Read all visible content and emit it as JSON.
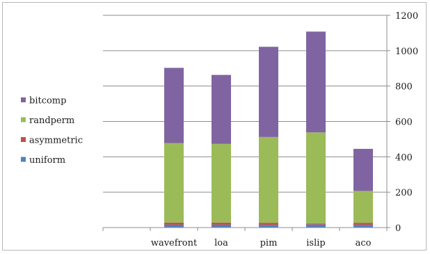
{
  "chart_data": {
    "type": "bar",
    "stacked": true,
    "title": "",
    "xlabel": "",
    "ylabel": "",
    "ylim": [
      0,
      1200
    ],
    "yticks": [
      0,
      200,
      400,
      600,
      800,
      1000,
      1200
    ],
    "y_axis_side": "right",
    "grid": true,
    "legend": "left",
    "categories": [
      "",
      "wavefront",
      "loa",
      "pim",
      "islip",
      "aco"
    ],
    "series": [
      {
        "name": "uniform",
        "color": "#4f81bd",
        "values": [
          0,
          16,
          16,
          15,
          17,
          15
        ]
      },
      {
        "name": "asymmetric",
        "color": "#c0504d",
        "values": [
          0,
          12,
          12,
          12,
          6,
          12
        ]
      },
      {
        "name": "randperm",
        "color": "#9bbb59",
        "values": [
          0,
          450,
          445,
          485,
          515,
          180
        ]
      },
      {
        "name": "bitcomp",
        "color": "#8064a2",
        "values": [
          0,
          425,
          390,
          510,
          570,
          238
        ]
      }
    ]
  }
}
